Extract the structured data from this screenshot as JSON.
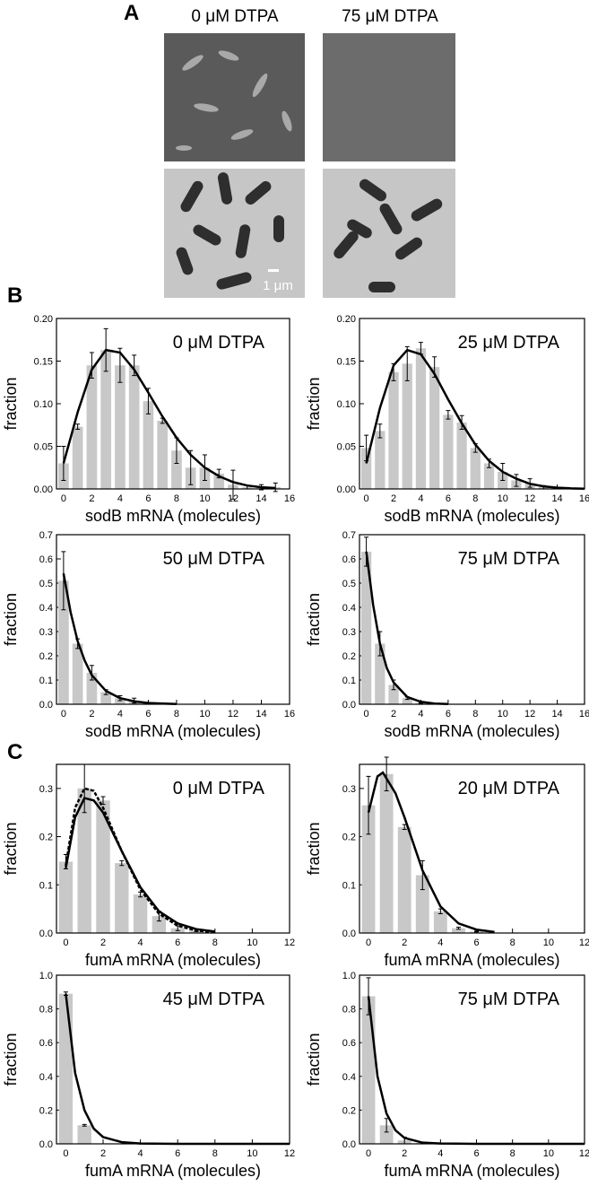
{
  "figure": {
    "panel_a": "A",
    "panel_b": "B",
    "panel_c": "C",
    "image_left_title": "0 μM DTPA",
    "image_right_title": "75 μM DTPA",
    "scale_bar": "1 μm"
  },
  "chart_data": [
    {
      "type": "bar",
      "title": "0 μM DTPA",
      "xlabel": "sodB mRNA (molecules)",
      "ylabel": "fraction",
      "color": "#c8c8c8",
      "x": [
        0,
        1,
        2,
        3,
        4,
        5,
        6,
        7,
        8,
        9,
        10,
        11,
        12,
        13,
        14,
        15
      ],
      "values": [
        0.03,
        0.073,
        0.145,
        0.163,
        0.145,
        0.145,
        0.103,
        0.08,
        0.045,
        0.025,
        0.025,
        0.018,
        0.005,
        0.002,
        0.002,
        0.002
      ],
      "errors": [
        0.02,
        0.003,
        0.015,
        0.025,
        0.02,
        0.012,
        0.015,
        0.003,
        0.015,
        0.02,
        0.015,
        0.005,
        0.017,
        0.002,
        0.003,
        0.005
      ],
      "fits": [
        {
          "color": "#000000",
          "dashed": false,
          "x": [
            0,
            1,
            2,
            3,
            4,
            5,
            6,
            7,
            8,
            9,
            10,
            11,
            12,
            13,
            14,
            15
          ],
          "y": [
            0.03,
            0.09,
            0.14,
            0.163,
            0.16,
            0.14,
            0.113,
            0.085,
            0.06,
            0.04,
            0.025,
            0.015,
            0.008,
            0.004,
            0.002,
            0.001
          ]
        }
      ],
      "xlim": [
        -0.5,
        16
      ],
      "ylim": [
        0,
        0.2
      ],
      "xticks": [
        0,
        2,
        4,
        6,
        8,
        10,
        12,
        14,
        16
      ],
      "yticks": [
        {
          "value": 0,
          "label": "0.00"
        },
        {
          "value": 0.05,
          "label": "0.05"
        },
        {
          "value": 0.1,
          "label": "0.10"
        },
        {
          "value": 0.15,
          "label": "0.15"
        },
        {
          "value": 0.2,
          "label": "0.20"
        }
      ]
    },
    {
      "type": "bar",
      "title": "25 μM DTPA",
      "xlabel": "sodB mRNA (molecules)",
      "ylabel": "fraction",
      "color": "#c8c8c8",
      "x": [
        0,
        1,
        2,
        3,
        4,
        5,
        6,
        7,
        8,
        9,
        10,
        11,
        12,
        13
      ],
      "values": [
        0.048,
        0.068,
        0.137,
        0.147,
        0.165,
        0.143,
        0.087,
        0.078,
        0.048,
        0.03,
        0.02,
        0.01,
        0.007,
        0.002
      ],
      "errors": [
        0.015,
        0.008,
        0.01,
        0.02,
        0.007,
        0.012,
        0.005,
        0.008,
        0.005,
        0.005,
        0.01,
        0.007,
        0.005,
        0.002
      ],
      "fits": [
        {
          "color": "#000000",
          "dashed": false,
          "x": [
            0,
            1,
            2,
            3,
            4,
            5,
            6,
            7,
            8,
            9,
            10,
            11,
            12,
            13,
            14,
            15,
            16
          ],
          "y": [
            0.03,
            0.095,
            0.145,
            0.163,
            0.158,
            0.135,
            0.105,
            0.077,
            0.052,
            0.033,
            0.02,
            0.012,
            0.006,
            0.003,
            0.0015,
            0.0007,
            0.0003
          ]
        }
      ],
      "xlim": [
        -0.5,
        16
      ],
      "ylim": [
        0,
        0.2
      ],
      "xticks": [
        0,
        2,
        4,
        6,
        8,
        10,
        12,
        14,
        16
      ],
      "yticks": [
        {
          "value": 0,
          "label": "0.00"
        },
        {
          "value": 0.05,
          "label": "0.05"
        },
        {
          "value": 0.1,
          "label": "0.10"
        },
        {
          "value": 0.15,
          "label": "0.15"
        },
        {
          "value": 0.2,
          "label": "0.20"
        }
      ]
    },
    {
      "type": "bar",
      "title": "50 μM DTPA",
      "xlabel": "sodB mRNA (molecules)",
      "ylabel": "fraction",
      "color": "#c8c8c8",
      "x": [
        0,
        1,
        2,
        3,
        4,
        5,
        6
      ],
      "values": [
        0.51,
        0.25,
        0.13,
        0.05,
        0.025,
        0.015,
        0.005
      ],
      "errors": [
        0.12,
        0.02,
        0.03,
        0.01,
        0.01,
        0.01,
        0.003
      ],
      "fits": [
        {
          "color": "#000000",
          "dashed": false,
          "x": [
            0,
            0.5,
            1,
            1.5,
            2,
            3,
            4,
            5,
            6,
            8
          ],
          "y": [
            0.54,
            0.38,
            0.26,
            0.18,
            0.12,
            0.055,
            0.025,
            0.012,
            0.005,
            0.001
          ]
        }
      ],
      "xlim": [
        -0.5,
        16
      ],
      "ylim": [
        0,
        0.7
      ],
      "xticks": [
        0,
        2,
        4,
        6,
        8,
        10,
        12,
        14,
        16
      ],
      "yticks": [
        {
          "value": 0,
          "label": "0.0"
        },
        0.1,
        0.2,
        0.3,
        0.4,
        0.5,
        0.6,
        0.7
      ]
    },
    {
      "type": "bar",
      "title": "75 μM DTPA",
      "xlabel": "sodB mRNA (molecules)",
      "ylabel": "fraction",
      "color": "#c8c8c8",
      "x": [
        0,
        1,
        2,
        3,
        4
      ],
      "values": [
        0.63,
        0.25,
        0.08,
        0.025,
        0.005
      ],
      "errors": [
        0.06,
        0.05,
        0.02,
        0.005,
        0.002
      ],
      "fits": [
        {
          "color": "#000000",
          "dashed": false,
          "x": [
            0,
            0.5,
            1,
            1.5,
            2,
            3,
            4,
            5,
            6
          ],
          "y": [
            0.63,
            0.41,
            0.25,
            0.15,
            0.09,
            0.03,
            0.01,
            0.003,
            0.001
          ]
        }
      ],
      "xlim": [
        -0.5,
        16
      ],
      "ylim": [
        0,
        0.7
      ],
      "xticks": [
        0,
        2,
        4,
        6,
        8,
        10,
        12,
        14,
        16
      ],
      "yticks": [
        {
          "value": 0,
          "label": "0.0"
        },
        0.1,
        0.2,
        0.3,
        0.4,
        0.5,
        0.6,
        0.7
      ]
    },
    {
      "type": "bar",
      "title": "0 μM DTPA",
      "xlabel": "fumA mRNA (molecules)",
      "ylabel": "fraction",
      "color": "#c8c8c8",
      "x": [
        0,
        1,
        2,
        3,
        4,
        5,
        6,
        7
      ],
      "values": [
        0.148,
        0.3,
        0.275,
        0.145,
        0.08,
        0.035,
        0.01,
        0.005
      ],
      "errors": [
        0.015,
        0.05,
        0.008,
        0.005,
        0.005,
        0.01,
        0.005,
        0.002
      ],
      "fits": [
        {
          "color": "#000000",
          "dashed": false,
          "x": [
            0,
            0.5,
            1,
            1.5,
            2,
            3,
            4,
            5,
            6,
            7,
            8
          ],
          "y": [
            0.135,
            0.24,
            0.28,
            0.275,
            0.25,
            0.17,
            0.095,
            0.045,
            0.02,
            0.008,
            0.003
          ]
        },
        {
          "color": "#000000",
          "dashed": true,
          "x": [
            0,
            0.5,
            1,
            1.5,
            2,
            3,
            4,
            5,
            6,
            7,
            8
          ],
          "y": [
            0.14,
            0.26,
            0.3,
            0.295,
            0.26,
            0.17,
            0.09,
            0.04,
            0.015,
            0.005,
            0.002
          ]
        }
      ],
      "xlim": [
        -0.5,
        12
      ],
      "ylim": [
        0,
        0.35
      ],
      "xticks": [
        0,
        2,
        4,
        6,
        8,
        10,
        12
      ],
      "yticks": [
        {
          "value": 0,
          "label": "0.0"
        },
        0.1,
        0.2,
        0.3
      ]
    },
    {
      "type": "bar",
      "title": "20 μM DTPA",
      "xlabel": "fumA mRNA (molecules)",
      "ylabel": "fraction",
      "color": "#c8c8c8",
      "x": [
        0,
        1,
        2,
        3,
        4,
        5,
        6
      ],
      "values": [
        0.265,
        0.33,
        0.22,
        0.12,
        0.045,
        0.01,
        0.003
      ],
      "errors": [
        0.06,
        0.035,
        0.005,
        0.03,
        0.005,
        0.002,
        0.001
      ],
      "fits": [
        {
          "color": "#000000",
          "dashed": false,
          "x": [
            0,
            0.5,
            0.8,
            1.5,
            2,
            3,
            4,
            5,
            6,
            7
          ],
          "y": [
            0.25,
            0.325,
            0.333,
            0.29,
            0.24,
            0.13,
            0.055,
            0.02,
            0.007,
            0.002
          ]
        }
      ],
      "xlim": [
        -0.5,
        12
      ],
      "ylim": [
        0,
        0.35
      ],
      "xticks": [
        0,
        2,
        4,
        6,
        8,
        10,
        12
      ],
      "yticks": [
        {
          "value": 0,
          "label": "0.0"
        },
        0.1,
        0.2,
        0.3
      ]
    },
    {
      "type": "bar",
      "title": "45 μM DTPA",
      "xlabel": "fumA mRNA (molecules)",
      "ylabel": "fraction",
      "color": "#c8c8c8",
      "x": [
        0,
        1
      ],
      "values": [
        0.89,
        0.11
      ],
      "errors": [
        0.01,
        0.005
      ],
      "fits": [
        {
          "color": "#000000",
          "dashed": false,
          "x": [
            0,
            0.5,
            1,
            1.5,
            2,
            3,
            4,
            6,
            12
          ],
          "y": [
            0.89,
            0.42,
            0.2,
            0.09,
            0.04,
            0.01,
            0.002,
            0,
            0
          ]
        }
      ],
      "xlim": [
        -0.5,
        12
      ],
      "ylim": [
        0,
        1
      ],
      "xticks": [
        0,
        2,
        4,
        6,
        8,
        10,
        12
      ],
      "yticks": [
        {
          "value": 0,
          "label": "0.0"
        },
        0.2,
        0.4,
        0.6,
        0.8,
        {
          "value": 1,
          "label": "1.0"
        }
      ]
    },
    {
      "type": "bar",
      "title": "75 μM DTPA",
      "xlabel": "fumA mRNA (molecules)",
      "ylabel": "fraction",
      "color": "#c8c8c8",
      "x": [
        0,
        1,
        2,
        3
      ],
      "values": [
        0.875,
        0.11,
        0.02,
        0.005
      ],
      "errors": [
        0.11,
        0.04,
        0.02,
        0.005
      ],
      "fits": [
        {
          "color": "#000000",
          "dashed": false,
          "x": [
            0,
            0.5,
            1,
            1.5,
            2,
            3,
            4,
            6,
            12
          ],
          "y": [
            0.875,
            0.4,
            0.18,
            0.08,
            0.035,
            0.007,
            0.002,
            0,
            0
          ]
        }
      ],
      "xlim": [
        -0.5,
        12
      ],
      "ylim": [
        0,
        1
      ],
      "xticks": [
        0,
        2,
        4,
        6,
        8,
        10,
        12
      ],
      "yticks": [
        {
          "value": 0,
          "label": "0.0"
        },
        0.2,
        0.4,
        0.6,
        0.8,
        {
          "value": 1,
          "label": "1.0"
        }
      ]
    }
  ]
}
